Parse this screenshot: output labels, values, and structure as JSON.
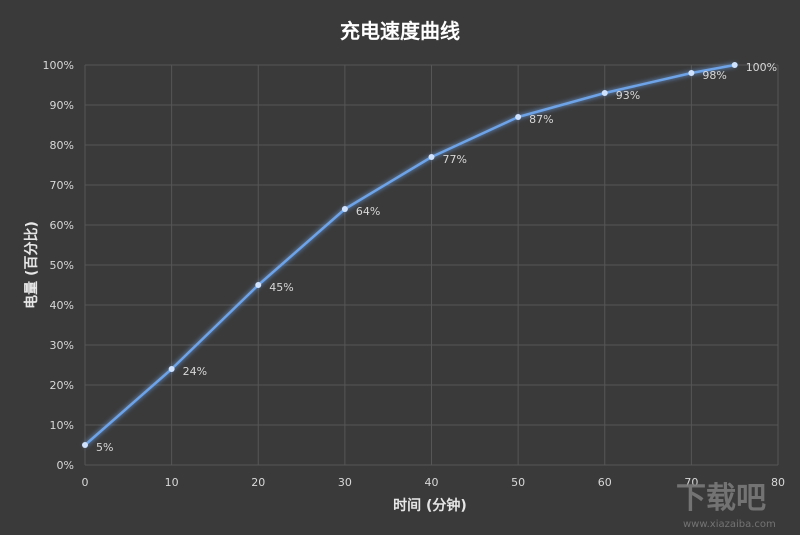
{
  "chart_data": {
    "type": "line",
    "title": "充电速度曲线",
    "xlabel": "时间 (分钟)",
    "ylabel": "电量 (百分比)",
    "xlim": [
      0,
      80
    ],
    "ylim": [
      0,
      100
    ],
    "x_ticks": [
      "0",
      "10",
      "20",
      "30",
      "40",
      "50",
      "60",
      "70",
      "80"
    ],
    "y_ticks": [
      "0%",
      "10%",
      "20%",
      "30%",
      "40%",
      "50%",
      "60%",
      "70%",
      "80%",
      "90%",
      "100%"
    ],
    "grid": true,
    "legend": "none",
    "series": [
      {
        "x": [
          0,
          10,
          20,
          30,
          40,
          50,
          60,
          70,
          75
        ],
        "y": [
          5,
          24,
          45,
          64,
          77,
          87,
          93,
          98,
          100
        ],
        "labels": [
          "5%",
          "24%",
          "45%",
          "64%",
          "77%",
          "87%",
          "93%",
          "98%",
          "100%"
        ],
        "color": "#6ea3e8"
      }
    ]
  },
  "colors": {
    "background": "#3a3a3a",
    "grid": "#565656",
    "line": "#6ea3e8",
    "text": "#d8d8d8"
  },
  "watermark": {
    "text": "下载吧",
    "sub": "www.xiazaiba.com"
  }
}
